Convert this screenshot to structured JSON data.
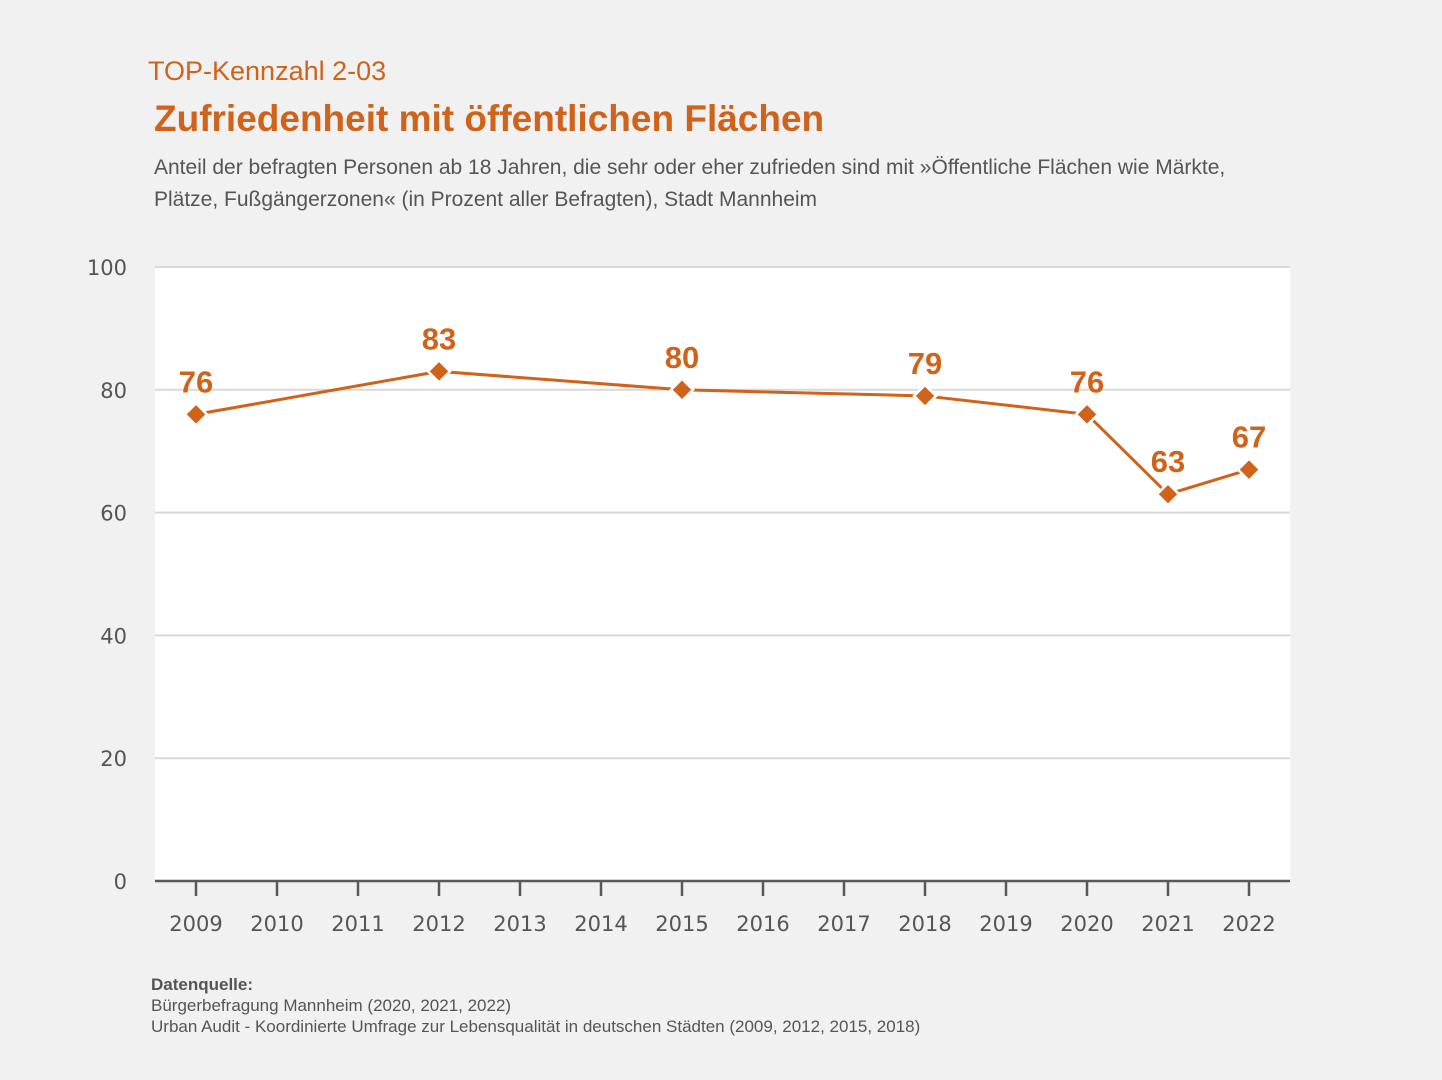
{
  "header": {
    "kicker": "TOP-Kennzahl 2-03",
    "title": "Zufriedenheit mit öffentlichen Flächen",
    "subtitle": "Anteil der befragten Personen ab 18 Jahren, die sehr oder eher zufrieden sind mit »Öffentliche Flächen wie Märkte, Plätze, Fußgängerzonen« (in Prozent aller Befragten), Stadt Mannheim"
  },
  "source": {
    "heading": "Datenquelle:",
    "lines": [
      "Bürgerbefragung Mannheim (2020, 2021, 2022)",
      "Urban Audit - Koordinierte Umfrage zur Lebensqualität in deutschen Städten (2009, 2012, 2015, 2018)"
    ]
  },
  "colors": {
    "accent": "#d0621a",
    "background": "#f1f1f1",
    "plot_background": "#ffffff",
    "gridline": "#d9d9d9",
    "axis": "#595959",
    "text": "#555555"
  },
  "chart_data": {
    "type": "line",
    "title": "Zufriedenheit mit öffentlichen Flächen",
    "xlabel": "",
    "ylabel": "",
    "x_ticks": [
      "2009",
      "2010",
      "2011",
      "2012",
      "2013",
      "2014",
      "2015",
      "2016",
      "2017",
      "2018",
      "2019",
      "2020",
      "2021",
      "2022"
    ],
    "y_ticks": [
      0,
      20,
      40,
      60,
      80,
      100
    ],
    "ylim": [
      0,
      100
    ],
    "grid": true,
    "legend": "none",
    "series": [
      {
        "name": "Zufriedenheit mit öffentlichen Flächen",
        "marker": "diamond",
        "points": [
          {
            "x": "2009",
            "y": 76
          },
          {
            "x": "2012",
            "y": 83
          },
          {
            "x": "2015",
            "y": 80
          },
          {
            "x": "2018",
            "y": 79
          },
          {
            "x": "2020",
            "y": 76
          },
          {
            "x": "2021",
            "y": 63
          },
          {
            "x": "2022",
            "y": 67
          }
        ]
      }
    ]
  }
}
